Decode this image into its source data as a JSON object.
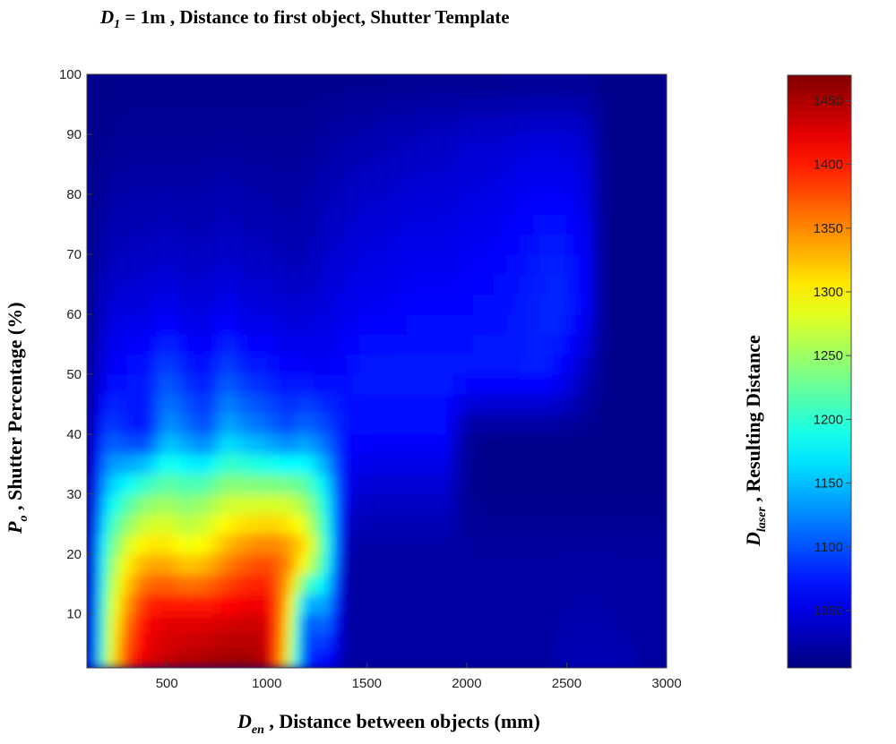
{
  "chart_data": {
    "type": "heatmap",
    "title": {
      "sym": "D",
      "sub": "1",
      "rest": " = 1m ,   Distance to first object, Shutter Template"
    },
    "xlabel": {
      "sym": "D",
      "sub": "en",
      "rest": " , Distance between objects (mm)"
    },
    "ylabel": {
      "sym": "P",
      "sub": "o",
      "rest": " , Shutter Percentage (%)"
    },
    "colorbar_label": {
      "sym": "D",
      "sub": "laser",
      "rest": " , Resulting Distance"
    },
    "xlim": [
      100,
      3000
    ],
    "ylim": [
      1,
      100
    ],
    "xticks": [
      500,
      1000,
      1500,
      2000,
      2500,
      3000
    ],
    "yticks": [
      10,
      20,
      30,
      40,
      50,
      60,
      70,
      80,
      90,
      100
    ],
    "colorbar": {
      "colormap": "jet",
      "range": [
        1005,
        1470
      ],
      "ticks": [
        1050,
        1100,
        1150,
        1200,
        1250,
        1300,
        1350,
        1400,
        1450
      ]
    },
    "x": [
      100,
      200,
      300,
      400,
      500,
      600,
      700,
      800,
      900,
      1000,
      1100,
      1200,
      1300,
      1400,
      1500,
      1600,
      1700,
      1800,
      1900,
      2000,
      2100,
      2200,
      2300,
      2400,
      2500,
      2600,
      2700,
      2800,
      2900,
      3000
    ],
    "y": [
      1,
      10,
      20,
      30,
      40,
      50,
      60,
      70,
      80,
      90,
      100
    ],
    "z": [
      [
        1010,
        1260,
        1390,
        1430,
        1440,
        1450,
        1455,
        1460,
        1460,
        1450,
        1300,
        1070,
        1060,
        1020,
        1020,
        1020,
        1020,
        1020,
        1020,
        1020,
        1020,
        1020,
        1020,
        1020,
        1030,
        1030,
        1030,
        1030,
        1020,
        1020
      ],
      [
        1010,
        1250,
        1350,
        1410,
        1420,
        1420,
        1420,
        1425,
        1430,
        1430,
        1330,
        1100,
        1130,
        1020,
        1020,
        1020,
        1020,
        1020,
        1020,
        1020,
        1020,
        1020,
        1020,
        1020,
        1025,
        1025,
        1025,
        1020,
        1020,
        1020
      ],
      [
        1010,
        1220,
        1290,
        1320,
        1320,
        1300,
        1310,
        1340,
        1360,
        1370,
        1360,
        1320,
        1210,
        1020,
        1020,
        1020,
        1020,
        1020,
        1020,
        1020,
        1020,
        1020,
        1020,
        1020,
        1020,
        1020,
        1020,
        1020,
        1020,
        1020
      ],
      [
        1010,
        1160,
        1200,
        1230,
        1240,
        1230,
        1240,
        1260,
        1260,
        1260,
        1260,
        1240,
        1180,
        1050,
        1040,
        1040,
        1040,
        1040,
        1040,
        1015,
        1010,
        1010,
        1010,
        1010,
        1010,
        1010,
        1010,
        1010,
        1010,
        1010
      ],
      [
        1010,
        1100,
        1080,
        1070,
        1140,
        1120,
        1100,
        1150,
        1130,
        1120,
        1100,
        1120,
        1100,
        1070,
        1065,
        1065,
        1065,
        1065,
        1065,
        1015,
        1010,
        1010,
        1010,
        1010,
        1010,
        1010,
        1010,
        1010,
        1010,
        1010
      ],
      [
        1010,
        1060,
        1070,
        1075,
        1100,
        1080,
        1070,
        1100,
        1080,
        1075,
        1065,
        1065,
        1060,
        1070,
        1075,
        1075,
        1075,
        1075,
        1075,
        1075,
        1075,
        1075,
        1075,
        1075,
        1060,
        1030,
        1010,
        1010,
        1010,
        1010
      ],
      [
        1010,
        1045,
        1050,
        1050,
        1060,
        1050,
        1050,
        1060,
        1050,
        1050,
        1045,
        1045,
        1050,
        1055,
        1060,
        1060,
        1065,
        1065,
        1065,
        1065,
        1070,
        1070,
        1075,
        1080,
        1080,
        1060,
        1010,
        1010,
        1010,
        1010
      ],
      [
        1010,
        1030,
        1035,
        1035,
        1040,
        1035,
        1035,
        1040,
        1035,
        1035,
        1030,
        1030,
        1040,
        1045,
        1050,
        1050,
        1055,
        1055,
        1055,
        1060,
        1060,
        1065,
        1070,
        1075,
        1075,
        1060,
        1010,
        1010,
        1010,
        1010
      ],
      [
        1010,
        1020,
        1025,
        1025,
        1025,
        1025,
        1025,
        1030,
        1025,
        1025,
        1020,
        1025,
        1030,
        1035,
        1040,
        1040,
        1045,
        1045,
        1045,
        1050,
        1050,
        1055,
        1060,
        1060,
        1060,
        1050,
        1010,
        1010,
        1010,
        1010
      ],
      [
        1010,
        1012,
        1015,
        1015,
        1015,
        1015,
        1015,
        1015,
        1015,
        1015,
        1015,
        1015,
        1020,
        1025,
        1025,
        1030,
        1030,
        1035,
        1035,
        1040,
        1040,
        1040,
        1045,
        1045,
        1045,
        1040,
        1010,
        1010,
        1010,
        1010
      ],
      [
        1010,
        1010,
        1010,
        1010,
        1010,
        1010,
        1010,
        1010,
        1010,
        1010,
        1010,
        1010,
        1010,
        1010,
        1010,
        1010,
        1010,
        1010,
        1010,
        1010,
        1010,
        1010,
        1010,
        1010,
        1010,
        1010,
        1010,
        1010,
        1010,
        1010
      ]
    ]
  }
}
